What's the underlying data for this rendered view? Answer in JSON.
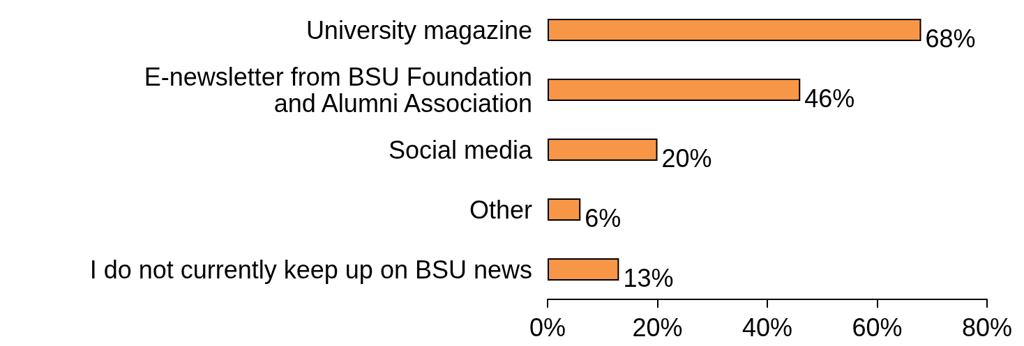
{
  "chart_data": {
    "type": "bar",
    "orientation": "horizontal",
    "categories": [
      "University magazine",
      "E-newsletter from BSU Foundation\nand Alumni Association",
      "Social media",
      "Other",
      "I do not currently keep up on BSU news"
    ],
    "values": [
      68,
      46,
      20,
      6,
      13
    ],
    "value_labels": [
      "68%",
      "46%",
      "20%",
      "6%",
      "13%"
    ],
    "color": "#f79646",
    "xlim": [
      0,
      80
    ],
    "xticks": [
      {
        "value": 0,
        "label": "0%"
      },
      {
        "value": 20,
        "label": "20%"
      },
      {
        "value": 40,
        "label": "40%"
      },
      {
        "value": 60,
        "label": "60%"
      },
      {
        "value": 80,
        "label": "80%"
      }
    ],
    "grid": false
  }
}
